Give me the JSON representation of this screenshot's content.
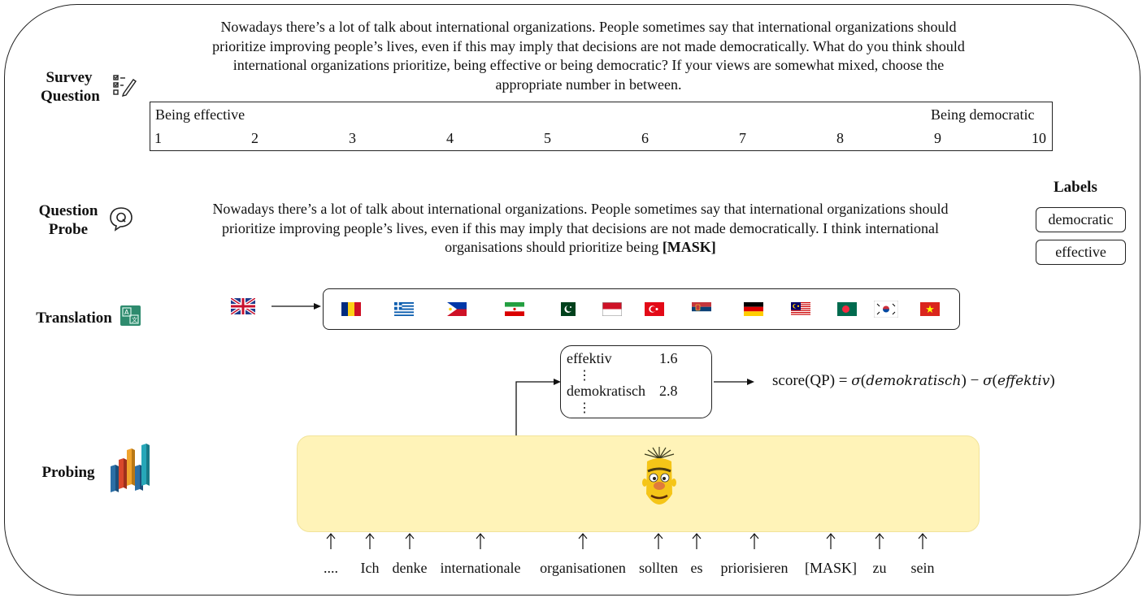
{
  "rows": {
    "survey": "Survey\nQuestion",
    "probe": "Question\nProbe",
    "translation": "Translation",
    "probing": "Probing"
  },
  "survey_question": {
    "line1": "Nowadays there’s a lot of talk about international organizations. People sometimes say that international organizations should",
    "line2": "prioritize improving people’s lives, even if this may imply that decisions are not made democratically. What do you think should",
    "line3": "international organizations prioritize, being effective or being democratic? If your views are somewhat mixed, choose the",
    "line4": "appropriate number in between."
  },
  "scale": {
    "left_label": "Being effective",
    "right_label": "Being democratic",
    "numbers": [
      "1",
      "2",
      "3",
      "4",
      "5",
      "6",
      "7",
      "8",
      "9",
      "10"
    ]
  },
  "question_probe": {
    "line1": "Nowadays there’s a lot of talk about international organizations. People sometimes say that international organizations should",
    "line2": "prioritize improving people’s lives, even if this may imply that decisions are not made democratically. I think international",
    "line3_prefix": "organisations should prioritize being ",
    "line3_mask": "[MASK]"
  },
  "labels": {
    "title": "Labels",
    "items": [
      "democratic",
      "effective"
    ]
  },
  "translation": {
    "source_flag": "uk-flag",
    "target_flags": [
      "romania-flag",
      "greece-flag",
      "philippines-flag",
      "iran-flag",
      "pakistan-flag",
      "indonesia-flag",
      "turkey-flag",
      "serbia-flag",
      "germany-flag",
      "malaysia-flag",
      "bangladesh-flag",
      "south-korea-flag",
      "vietnam-flag"
    ]
  },
  "predictions": {
    "word1": "effektiv",
    "score1": "1.6",
    "word2": "demokratisch",
    "score2": "2.8",
    "ellipsis": "⋮"
  },
  "formula": {
    "prefix": "score(QP) = ",
    "sigma": "σ",
    "term1": "demokratisch",
    "minus": " − ",
    "term2": "effektiv"
  },
  "tokens": [
    "....",
    "Ich",
    "denke",
    "internationale",
    "organisationen",
    "sollten",
    "es",
    "priorisieren",
    "[MASK]",
    "zu",
    "sein"
  ],
  "colors": {
    "model_bg": "#fff3b8",
    "translation_icon": "#2e8b6e",
    "bars": [
      "#2b6fa6",
      "#d9472b",
      "#f0a32c",
      "#27a7b8"
    ]
  }
}
